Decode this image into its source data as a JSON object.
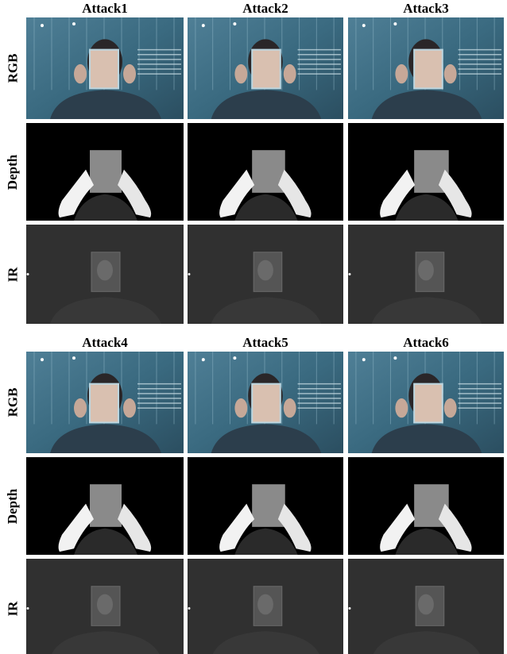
{
  "figure": {
    "blocks": [
      {
        "columns": [
          "Attack1",
          "Attack2",
          "Attack3"
        ],
        "rows": [
          "RGB",
          "Depth",
          "IR"
        ]
      },
      {
        "columns": [
          "Attack4",
          "Attack5",
          "Attack6"
        ],
        "rows": [
          "RGB",
          "Depth",
          "IR"
        ]
      }
    ]
  }
}
